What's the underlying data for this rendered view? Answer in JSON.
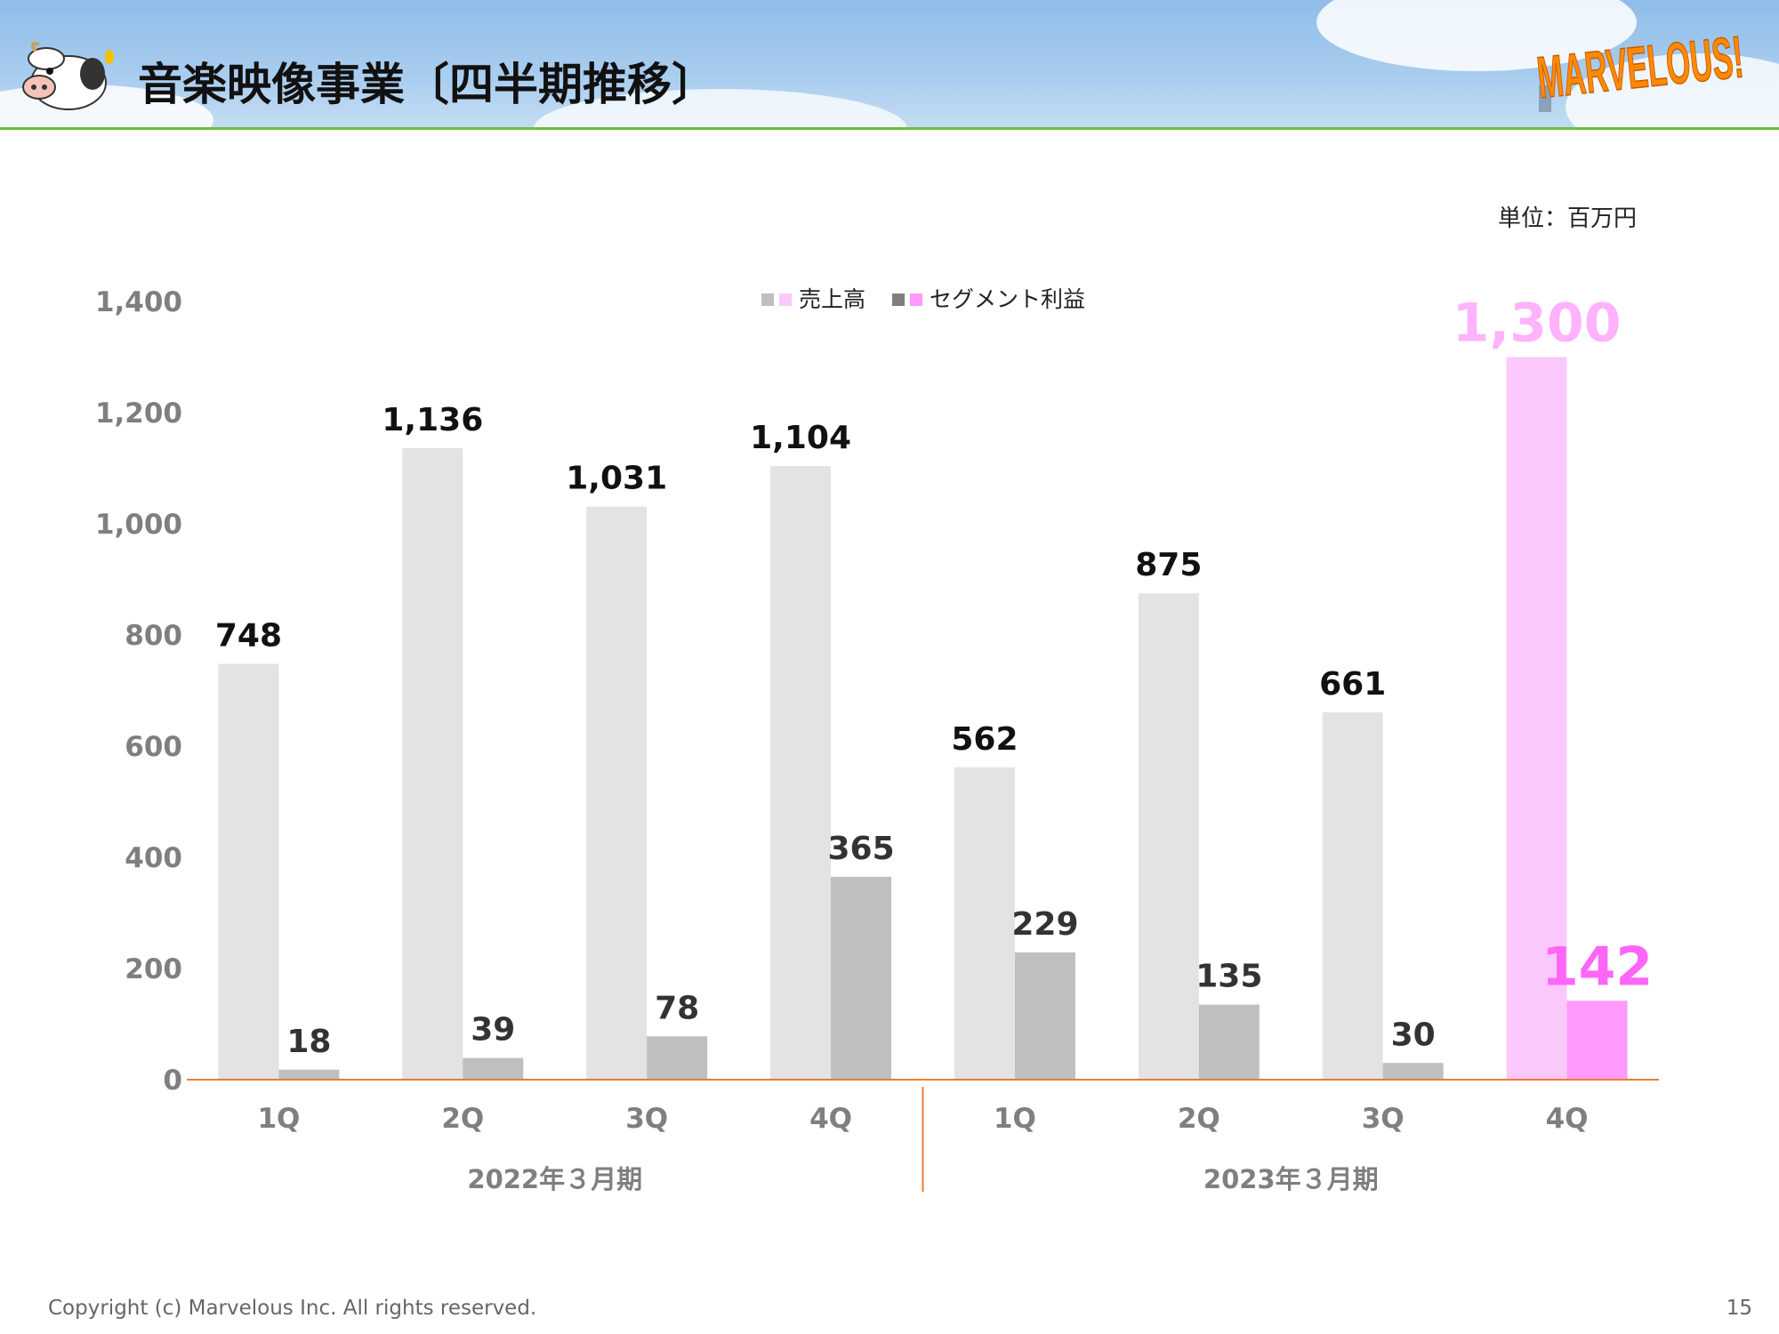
{
  "header": {
    "title": "音楽映像事業〔四半期推移〕",
    "logo_text": "MARVELOUS!",
    "mascot_icon": "cow-mascot-icon"
  },
  "unit": "単位：百万円",
  "footer": {
    "copyright": "Copyright (c) Marvelous Inc. All rights reserved.",
    "page": "15"
  },
  "chart_data": {
    "type": "bar",
    "categories": [
      "1Q",
      "2Q",
      "3Q",
      "4Q",
      "1Q",
      "2Q",
      "3Q",
      "4Q"
    ],
    "groups": [
      {
        "label": "2022年３月期",
        "start": 0,
        "end": 3
      },
      {
        "label": "2023年３月期",
        "start": 4,
        "end": 7
      }
    ],
    "series": [
      {
        "name": "売上高",
        "values": [
          748,
          1136,
          1031,
          1104,
          562,
          875,
          661,
          1300
        ],
        "color": "#e4e3e3",
        "highlight_color": "#fbc8fb",
        "label_color": "#111111"
      },
      {
        "name": "セグメント利益",
        "values": [
          18,
          39,
          78,
          365,
          229,
          135,
          30,
          142
        ],
        "color": "#bfbfbf",
        "highlight_color": "#ff99fc",
        "label_color": "#333333"
      }
    ],
    "highlight_index": 7,
    "highlight_label_colors": [
      "#ffb3fd",
      "#ff66f8"
    ],
    "legend_swatches": [
      [
        "#bfbfbf",
        "#fbc8fb"
      ],
      [
        "#7f7f7f",
        "#ff99fc"
      ]
    ],
    "legend_position": "top",
    "ylim": [
      0,
      1400
    ],
    "yticks": [
      0,
      200,
      400,
      600,
      800,
      1000,
      1200,
      1400
    ],
    "ytick_labels": [
      "0",
      "200",
      "400",
      "600",
      "800",
      "1,000",
      "1,200",
      "1,400"
    ],
    "grid": false,
    "axis_color": "#ed7d31"
  }
}
